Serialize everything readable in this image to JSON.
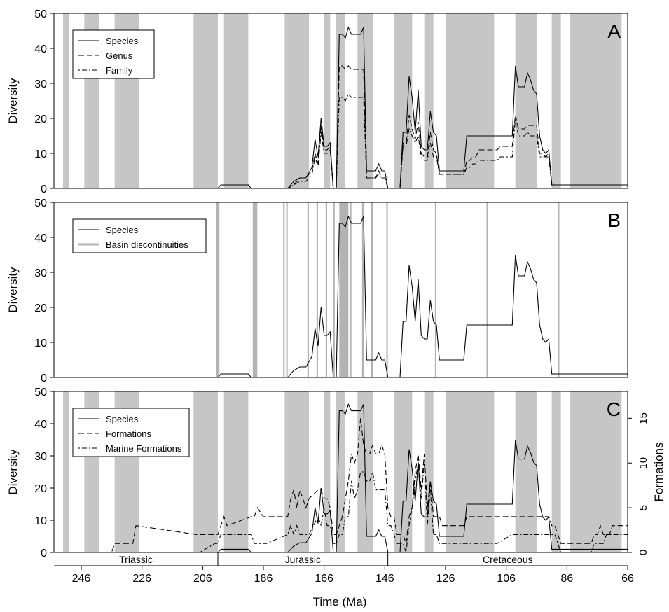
{
  "figure": {
    "xlabel": "Time (Ma)",
    "x_ticks": [
      246,
      226,
      206,
      186,
      166,
      146,
      126,
      106,
      86,
      66
    ],
    "xlim": [
      255,
      66
    ],
    "colors": {
      "band": "#c6c6c6",
      "discontinuity": "#b3b3b3",
      "line": "#000000"
    }
  },
  "periods": [
    {
      "name": "Triassic",
      "start": 255,
      "end": 201
    },
    {
      "name": "Jurassic",
      "start": 201,
      "end": 145
    },
    {
      "name": "Cretaceous",
      "start": 145,
      "end": 66
    }
  ],
  "shaded_intervals": [
    [
      252,
      250
    ],
    [
      245,
      240
    ],
    [
      235,
      227
    ],
    [
      209,
      201
    ],
    [
      199,
      191
    ],
    [
      179,
      171
    ],
    [
      166,
      164
    ],
    [
      162,
      159
    ],
    [
      155,
      150
    ],
    [
      143,
      137
    ],
    [
      133,
      130
    ],
    [
      126,
      110
    ],
    [
      103,
      96
    ],
    [
      91,
      88
    ],
    [
      85,
      68
    ]
  ],
  "chart_data": [
    {
      "type": "line",
      "panel": "A",
      "ylabel": "Diversity",
      "ylim": [
        0,
        50
      ],
      "y_ticks": [
        0,
        10,
        20,
        30,
        40,
        50
      ],
      "x": [
        255,
        201,
        200,
        191,
        190,
        180,
        178,
        176,
        174,
        172,
        170,
        169,
        168,
        167,
        166,
        165,
        164,
        163,
        162,
        161,
        160,
        159,
        158,
        157,
        156,
        155,
        154,
        153,
        152,
        151,
        150,
        149,
        148,
        147,
        146,
        145,
        144,
        143,
        142,
        141,
        140,
        139,
        138,
        137,
        136,
        135,
        134,
        133,
        132,
        131,
        130,
        129,
        128,
        127,
        126,
        125,
        124,
        123,
        122,
        121,
        120,
        119,
        118,
        117,
        116,
        115,
        114,
        113,
        112,
        111,
        110,
        109,
        108,
        107,
        106,
        105,
        104,
        103,
        102,
        101,
        100,
        99,
        98,
        97,
        96,
        95,
        94,
        93,
        92,
        91,
        90,
        89,
        88,
        87,
        86,
        85,
        80,
        70,
        66
      ],
      "series": [
        {
          "name": "Species",
          "dash": "solid",
          "values": [
            0,
            0,
            1,
            1,
            0,
            0,
            0,
            2,
            3,
            3,
            6,
            14,
            9,
            20,
            12,
            12,
            13,
            0,
            0,
            44,
            44,
            43,
            46,
            44,
            44,
            44,
            44,
            46,
            5,
            5,
            5,
            5,
            7,
            5,
            5,
            0,
            0,
            0,
            0,
            0,
            16,
            16,
            32,
            26,
            16,
            28,
            12,
            11,
            11,
            22,
            16,
            15,
            5,
            5,
            5,
            5,
            5,
            5,
            5,
            5,
            5,
            15,
            15,
            15,
            15,
            15,
            15,
            15,
            15,
            15,
            15,
            15,
            15,
            15,
            15,
            15,
            15,
            35,
            29,
            29,
            29,
            33,
            31,
            28,
            27,
            15,
            11,
            10,
            11,
            1,
            1,
            1,
            1,
            1,
            1,
            1,
            1,
            1,
            1
          ]
        },
        {
          "name": "Genus",
          "dash": "dashed",
          "values": [
            0,
            0,
            1,
            1,
            0,
            0,
            0,
            1,
            3,
            3,
            5,
            10,
            7,
            18,
            11,
            11,
            12,
            0,
            0,
            35,
            35,
            34,
            35,
            34,
            34,
            34,
            34,
            34,
            3,
            3,
            3,
            3,
            5,
            3,
            3,
            0,
            0,
            0,
            0,
            0,
            13,
            13,
            21,
            17,
            14,
            19,
            10,
            9,
            9,
            16,
            11,
            10,
            4,
            4,
            4,
            4,
            4,
            4,
            4,
            4,
            4,
            8,
            8,
            9,
            9,
            11,
            11,
            11,
            11,
            11,
            11,
            11,
            12,
            12,
            12,
            12,
            12,
            21,
            17,
            17,
            17,
            18,
            18,
            18,
            18,
            10,
            10,
            9,
            10,
            1,
            1,
            1,
            1,
            1,
            1,
            1,
            1,
            1,
            1
          ]
        },
        {
          "name": "Family",
          "dash": "dotdash",
          "values": [
            0,
            0,
            1,
            1,
            0,
            0,
            0,
            1,
            2,
            2,
            4,
            9,
            6,
            16,
            10,
            10,
            11,
            0,
            0,
            26,
            26,
            25,
            27,
            26,
            26,
            26,
            26,
            26,
            3,
            3,
            3,
            3,
            4,
            3,
            3,
            0,
            0,
            0,
            0,
            0,
            12,
            12,
            17,
            15,
            13,
            15,
            9,
            8,
            8,
            13,
            9,
            9,
            4,
            4,
            4,
            4,
            4,
            4,
            4,
            4,
            4,
            6,
            6,
            7,
            7,
            8,
            8,
            8,
            8,
            8,
            8,
            8,
            9,
            9,
            9,
            9,
            9,
            20,
            15,
            15,
            15,
            16,
            15,
            15,
            15,
            9,
            9,
            9,
            9,
            1,
            1,
            1,
            1,
            1,
            1,
            1,
            1,
            1,
            1
          ]
        }
      ],
      "legend": [
        "Species",
        "Genus",
        "Family"
      ],
      "legend_position": "top-left"
    },
    {
      "type": "line",
      "panel": "B",
      "ylabel": "Diversity",
      "ylim": [
        0,
        50
      ],
      "y_ticks": [
        0,
        10,
        20,
        30,
        40,
        50
      ],
      "series_ref": "Species",
      "legend": [
        "Species",
        "Basin discontinuities"
      ],
      "legend_position": "top-left",
      "discontinuities": [
        [
          201.5,
          200.5
        ],
        [
          189.5,
          188
        ],
        [
          179.5,
          179
        ],
        [
          178.5,
          178
        ],
        [
          171.5,
          171
        ],
        [
          168.5,
          168
        ],
        [
          165.5,
          165
        ],
        [
          163,
          162.5
        ],
        [
          161,
          158
        ],
        [
          157.5,
          157
        ],
        [
          153.5,
          153
        ],
        [
          150.5,
          150
        ],
        [
          145.5,
          145
        ],
        [
          129.5,
          129
        ],
        [
          112.5,
          112
        ],
        [
          89,
          88.5
        ]
      ]
    },
    {
      "type": "line",
      "panel": "C",
      "ylabel": "Diversity",
      "ylim": [
        0,
        50
      ],
      "y_ticks": [
        0,
        10,
        20,
        30,
        40,
        50
      ],
      "y2label": "Formations",
      "y2lim": [
        0,
        18
      ],
      "y2_ticks": [
        0,
        5,
        10,
        15
      ],
      "legend": [
        "Species",
        "Formations",
        "Marine Formations"
      ],
      "legend_position": "top-left",
      "x": [
        255,
        236,
        235,
        229,
        228,
        208,
        207,
        202,
        201,
        200,
        199,
        198,
        190,
        189,
        188,
        186,
        185,
        178,
        177,
        176,
        175,
        174,
        172,
        171,
        168,
        167,
        166,
        165,
        164,
        163,
        162,
        161,
        160,
        159,
        158,
        157,
        156,
        155,
        154,
        153,
        152,
        151,
        150,
        149,
        148,
        147,
        146,
        145,
        144,
        143,
        142,
        141,
        140,
        139,
        138,
        137,
        136,
        135,
        134,
        133,
        132,
        131,
        130,
        129,
        128,
        127,
        126,
        125,
        120,
        119,
        110,
        109,
        104,
        103,
        96,
        95,
        94,
        93,
        92,
        91,
        90,
        89,
        88,
        87,
        86,
        85,
        80,
        79,
        78,
        77,
        76,
        75,
        74,
        73,
        72,
        71,
        70,
        69,
        68,
        67,
        66
      ],
      "series": [
        {
          "name": "Formations",
          "dash": "dashed",
          "values": [
            0,
            0,
            1,
            1,
            3,
            2,
            2,
            2,
            2,
            3,
            4,
            3,
            4,
            4,
            5,
            4,
            4,
            4,
            6,
            7,
            5,
            7,
            5,
            6,
            7,
            7,
            6,
            6,
            5,
            2,
            2,
            3,
            4,
            6,
            8,
            11,
            10,
            11,
            15,
            12,
            11,
            11,
            12,
            11,
            11,
            12,
            11,
            5,
            4,
            4,
            2,
            2,
            2,
            1,
            4,
            5,
            9,
            11,
            7,
            11,
            5,
            8,
            4,
            4,
            4,
            3,
            3,
            3,
            3,
            4,
            4,
            4,
            4,
            4,
            4,
            4,
            4,
            4,
            4,
            3,
            3,
            2,
            1,
            1,
            1,
            1,
            1,
            1,
            1,
            2,
            2,
            3,
            2,
            2,
            2,
            3,
            3,
            3,
            3,
            3,
            3
          ]
        },
        {
          "name": "Marine Formations",
          "dash": "dotdash",
          "values": [
            0,
            0,
            0,
            0,
            0,
            0,
            0,
            1,
            1,
            2,
            2,
            2,
            2,
            1,
            1,
            1,
            1,
            2,
            3,
            2,
            3,
            2,
            2,
            2,
            4,
            3,
            5,
            3,
            3,
            1,
            1,
            2,
            2,
            4,
            4,
            8,
            6,
            7,
            9,
            9,
            8,
            8,
            9,
            7,
            7,
            7,
            7,
            3,
            3,
            2,
            1,
            1,
            1,
            0,
            3,
            5,
            8,
            10,
            6,
            10,
            3,
            7,
            2,
            2,
            1,
            1,
            1,
            1,
            1,
            1,
            1,
            1,
            2,
            2,
            2,
            2,
            2,
            2,
            2,
            2,
            2,
            1,
            0,
            0,
            0,
            0,
            0,
            0,
            0,
            1,
            1,
            1,
            1,
            2,
            2,
            2,
            2,
            2,
            2,
            2,
            2
          ]
        }
      ],
      "series_ref": "Species"
    }
  ]
}
